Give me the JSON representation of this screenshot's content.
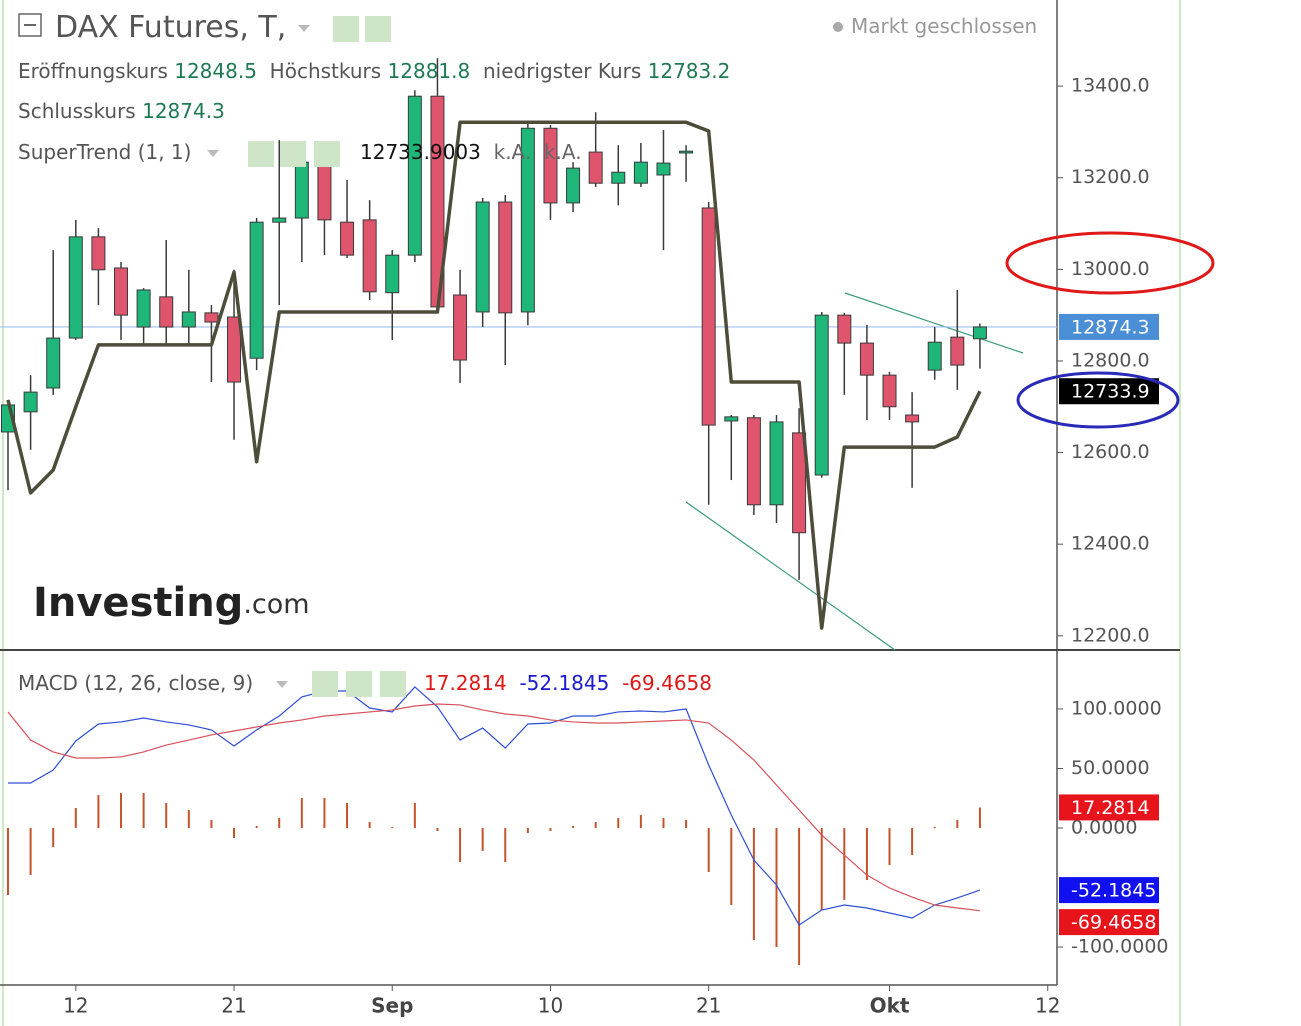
{
  "header": {
    "status": "Markt geschlossen",
    "open_label": "Eröffnungskurs",
    "high_label": "Höchstkurs",
    "low_label": "niedrigster Kurs",
    "close_label": "Schlusskurs",
    "logo": "Investing",
    "logo_suffix": ".com"
  },
  "chart_data": [
    {
      "type": "candlestick",
      "title": "DAX Futures, T,",
      "x": [
        0,
        1,
        2,
        3,
        4,
        5,
        6,
        7,
        8,
        9,
        10,
        11,
        12,
        13,
        14,
        15,
        16,
        17,
        18,
        19,
        20,
        21,
        22,
        23,
        24,
        25,
        26,
        27,
        28,
        29,
        30,
        31,
        32,
        33,
        34,
        35,
        36,
        37,
        38,
        39,
        40,
        41,
        42,
        43
      ],
      "xlim": [
        -0.354,
        46.41
      ],
      "xticks": [
        {
          "value": 3,
          "label": "12"
        },
        {
          "value": 10,
          "label": "21"
        },
        {
          "value": 17,
          "label": "Sep"
        },
        {
          "value": 24,
          "label": "10"
        },
        {
          "value": 31,
          "label": "21"
        },
        {
          "value": 39,
          "label": "Okt"
        },
        {
          "value": 46,
          "label": "12"
        }
      ],
      "ylim": [
        12169,
        13588
      ],
      "yticks": [
        {
          "value": 12200,
          "label": "12200.0"
        },
        {
          "value": 12400,
          "label": "12400.0"
        },
        {
          "value": 12600,
          "label": "12600.0"
        },
        {
          "value": 12800,
          "label": "12800.0"
        },
        {
          "value": 13000,
          "label": "13000.0"
        },
        {
          "value": 13200,
          "label": "13200.0"
        },
        {
          "value": 13400,
          "label": "13400.0"
        }
      ],
      "open": [
        12645,
        12689,
        12741,
        12850,
        13071,
        13003,
        12874,
        12940,
        12874,
        12905,
        12896,
        12806,
        13103,
        13112,
        13234,
        13103,
        13108,
        12949,
        13031,
        13378,
        12944,
        12907,
        13147,
        12907,
        13308,
        13145,
        13256,
        13188,
        13188,
        13206,
        13254,
        13134,
        12669,
        12676,
        12486,
        12643,
        12551,
        12900,
        12839,
        12769,
        12682,
        12780,
        12852,
        12848.5
      ],
      "high": [
        12704,
        12769,
        13042,
        13108,
        13090,
        13016,
        12959,
        13064,
        12999,
        12922,
        12999,
        13112,
        13282,
        13260,
        13260,
        13195,
        13151,
        13042,
        13391,
        13461,
        12999,
        13156,
        13162,
        13321,
        13315,
        13234,
        13343,
        13271,
        13276,
        13304,
        13271,
        13147,
        12682,
        12682,
        12682,
        12697,
        12907,
        12905,
        12879,
        12776,
        12732,
        12874,
        12955,
        12881.8
      ],
      "low": [
        12518,
        12606,
        12726,
        12846,
        12922,
        12846,
        12835,
        12835,
        12835,
        12754,
        12628,
        12780,
        12922,
        13016,
        13031,
        13025,
        12933,
        12846,
        13016,
        12911,
        12752,
        12874,
        12791,
        12878,
        13108,
        13125,
        13180,
        13140,
        13180,
        13042,
        13191,
        12486,
        12540,
        12464,
        12446,
        12322,
        12545,
        12726,
        12671,
        12671,
        12523,
        12759,
        12737,
        12783.2
      ],
      "close": [
        12704,
        12732,
        12850,
        13071,
        12999,
        12900,
        12955,
        12874,
        12907,
        12885,
        12754,
        13103,
        13112,
        13234,
        13108,
        13031,
        12951,
        13031,
        13378,
        12918,
        12802,
        13147,
        12905,
        13308,
        13145,
        13221,
        13188,
        13212,
        13234,
        13232,
        13258,
        12660,
        12678,
        12486,
        12667,
        12425,
        12900,
        12839,
        12769,
        12700,
        12667,
        12841,
        12791,
        12874.3
      ],
      "up_color": "#1fb67a",
      "down_color": "#e0556e",
      "wick_color": "#3a3a3a",
      "overlay": {
        "name": "SuperTrend (1, 1)",
        "color": "#4d4d3a",
        "values": [
          12715,
          12512,
          12562,
          12700,
          12835,
          12835,
          12835,
          12835,
          12835,
          12835,
          12994,
          12580,
          12907,
          12907,
          12907,
          12907,
          12907,
          12907,
          12907,
          12907,
          13321,
          13321,
          13321,
          13321,
          13321,
          13321,
          13321,
          13321,
          13321,
          13321,
          13321,
          13302,
          12754,
          12754,
          12754,
          12754,
          12217,
          12612,
          12612,
          12612,
          12612,
          12612,
          12634,
          12733.9003
        ],
        "value_label": "12733.9",
        "extra_labels": [
          "k.A.",
          "k.A."
        ]
      }
    },
    {
      "type": "macd",
      "title": "MACD (12, 26, close, 9)",
      "ylim": [
        -131.9,
        148.7
      ],
      "yticks": [
        {
          "value": -100,
          "label": "-100.0000"
        },
        {
          "value": 0,
          "label": "0.0000"
        },
        {
          "value": 50,
          "label": "50.0000"
        },
        {
          "value": 100,
          "label": "100.0000"
        }
      ],
      "series": [
        {
          "style": "histogram",
          "color": "#c4532c",
          "tag_color": "#e8141c",
          "values": [
            -56.3,
            -39.5,
            -16.0,
            16.8,
            27.7,
            29.4,
            29.4,
            21.0,
            15.1,
            6.7,
            -8.4,
            1.7,
            8.4,
            25.2,
            25.2,
            21.0,
            5.0,
            0.8,
            21.0,
            -2.5,
            -28.6,
            -19.3,
            -28.6,
            -4.2,
            -2.5,
            1.7,
            5.0,
            8.4,
            10.9,
            8.4,
            6.7,
            -37.0,
            -64.7,
            -94.1,
            -100.0,
            -115.1,
            -68.9,
            -60.5,
            -43.7,
            -31.1,
            -22.7,
            1.0,
            6.7,
            17.2814
          ]
        },
        {
          "style": "line",
          "color": "#2f4fd6",
          "tag_color": "#1010f0",
          "values": [
            37.8,
            37.8,
            48.7,
            73.1,
            87.4,
            89.1,
            92.4,
            89.1,
            86.6,
            82.4,
            68.9,
            82.4,
            94.1,
            110.1,
            115.1,
            115.1,
            100.8,
            97.5,
            118.5,
            101.7,
            73.9,
            84.0,
            67.2,
            87.4,
            88.2,
            94.1,
            94.1,
            97.5,
            98.3,
            97.5,
            100.0,
            52.9,
            10.9,
            -26.9,
            -47.9,
            -81.5,
            -68.9,
            -64.7,
            -67.2,
            -71.4,
            -75.6,
            -64.7,
            -58.8,
            -52.1845
          ]
        },
        {
          "style": "line",
          "color": "#d8505a",
          "tag_color": "#e8141c",
          "values": [
            97.5,
            73.9,
            63.9,
            58.8,
            58.8,
            59.7,
            63.9,
            69.7,
            73.9,
            78.2,
            81.5,
            84.9,
            88.2,
            90.8,
            94.1,
            95.8,
            97.5,
            99.2,
            102.5,
            104.2,
            103.4,
            99.2,
            95.8,
            94.1,
            90.8,
            89.1,
            88.2,
            88.2,
            89.1,
            89.9,
            90.8,
            88.2,
            73.9,
            57.1,
            36.1,
            15.1,
            -5.9,
            -22.7,
            -39.5,
            -50.4,
            -58.0,
            -64.7,
            -67.2,
            -69.4658
          ]
        }
      ]
    }
  ]
}
